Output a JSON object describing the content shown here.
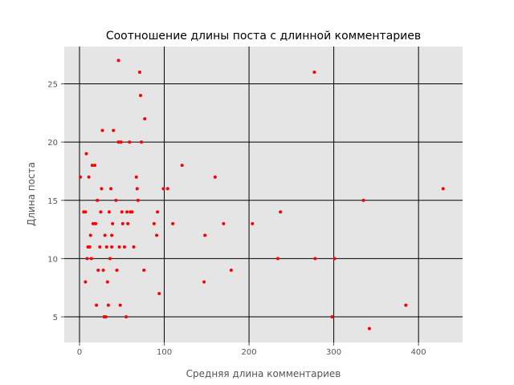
{
  "chart_data": {
    "type": "scatter",
    "title": "Соотношение длины поста с длинной комментариев",
    "xlabel": "Средняя длина комментариев",
    "ylabel": "Длина поста",
    "xlim": [
      -18,
      452
    ],
    "ylim": [
      2.8,
      28.2
    ],
    "xticks": [
      0,
      100,
      200,
      300,
      400
    ],
    "yticks": [
      5,
      10,
      15,
      20,
      25
    ],
    "grid": true,
    "colors": {
      "plot_background": "#E5E5E5",
      "grid": "#000000",
      "points": "#FF0000",
      "tick_text": "#555555"
    },
    "points": [
      {
        "x": 1,
        "y": 17
      },
      {
        "x": 5,
        "y": 14
      },
      {
        "x": 7,
        "y": 14
      },
      {
        "x": 7,
        "y": 8
      },
      {
        "x": 8,
        "y": 19
      },
      {
        "x": 9,
        "y": 10
      },
      {
        "x": 10,
        "y": 11
      },
      {
        "x": 11,
        "y": 17
      },
      {
        "x": 12,
        "y": 11
      },
      {
        "x": 13,
        "y": 12
      },
      {
        "x": 14,
        "y": 10
      },
      {
        "x": 15,
        "y": 18
      },
      {
        "x": 16,
        "y": 13
      },
      {
        "x": 18,
        "y": 18
      },
      {
        "x": 19,
        "y": 13
      },
      {
        "x": 20,
        "y": 6
      },
      {
        "x": 21,
        "y": 15
      },
      {
        "x": 22,
        "y": 9
      },
      {
        "x": 24,
        "y": 11
      },
      {
        "x": 25,
        "y": 14
      },
      {
        "x": 26,
        "y": 16
      },
      {
        "x": 27,
        "y": 21
      },
      {
        "x": 28,
        "y": 9
      },
      {
        "x": 29,
        "y": 5
      },
      {
        "x": 30,
        "y": 12
      },
      {
        "x": 31,
        "y": 5
      },
      {
        "x": 32,
        "y": 11
      },
      {
        "x": 33,
        "y": 8
      },
      {
        "x": 34,
        "y": 6
      },
      {
        "x": 35,
        "y": 14
      },
      {
        "x": 36,
        "y": 10
      },
      {
        "x": 37,
        "y": 16
      },
      {
        "x": 38,
        "y": 11
      },
      {
        "x": 38,
        "y": 12
      },
      {
        "x": 39,
        "y": 13
      },
      {
        "x": 40,
        "y": 21
      },
      {
        "x": 43,
        "y": 15
      },
      {
        "x": 44,
        "y": 9
      },
      {
        "x": 46,
        "y": 27
      },
      {
        "x": 46,
        "y": 20
      },
      {
        "x": 47,
        "y": 11
      },
      {
        "x": 48,
        "y": 6
      },
      {
        "x": 49,
        "y": 20
      },
      {
        "x": 50,
        "y": 14
      },
      {
        "x": 51,
        "y": 13
      },
      {
        "x": 53,
        "y": 11
      },
      {
        "x": 55,
        "y": 5
      },
      {
        "x": 56,
        "y": 14
      },
      {
        "x": 57,
        "y": 13
      },
      {
        "x": 59,
        "y": 20
      },
      {
        "x": 60,
        "y": 14
      },
      {
        "x": 62,
        "y": 14
      },
      {
        "x": 64,
        "y": 11
      },
      {
        "x": 67,
        "y": 17
      },
      {
        "x": 68,
        "y": 16
      },
      {
        "x": 69,
        "y": 15
      },
      {
        "x": 71,
        "y": 26
      },
      {
        "x": 72,
        "y": 24
      },
      {
        "x": 73,
        "y": 20
      },
      {
        "x": 76,
        "y": 9
      },
      {
        "x": 77,
        "y": 22
      },
      {
        "x": 88,
        "y": 13
      },
      {
        "x": 91,
        "y": 12
      },
      {
        "x": 92,
        "y": 14
      },
      {
        "x": 94,
        "y": 7
      },
      {
        "x": 99,
        "y": 16
      },
      {
        "x": 104,
        "y": 16
      },
      {
        "x": 110,
        "y": 13
      },
      {
        "x": 121,
        "y": 18
      },
      {
        "x": 147,
        "y": 8
      },
      {
        "x": 148,
        "y": 12
      },
      {
        "x": 160,
        "y": 17
      },
      {
        "x": 170,
        "y": 13
      },
      {
        "x": 179,
        "y": 9
      },
      {
        "x": 204,
        "y": 13
      },
      {
        "x": 234,
        "y": 10
      },
      {
        "x": 237,
        "y": 14
      },
      {
        "x": 277,
        "y": 26
      },
      {
        "x": 278,
        "y": 10
      },
      {
        "x": 298,
        "y": 5
      },
      {
        "x": 301,
        "y": 10
      },
      {
        "x": 335,
        "y": 15
      },
      {
        "x": 342,
        "y": 4
      },
      {
        "x": 385,
        "y": 6
      },
      {
        "x": 429,
        "y": 16
      }
    ]
  }
}
